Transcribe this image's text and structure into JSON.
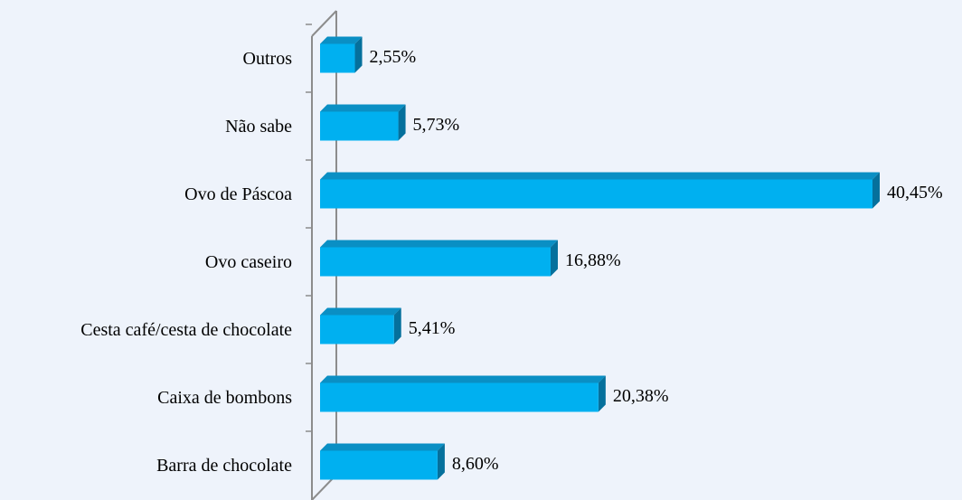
{
  "chart_data": {
    "type": "bar",
    "orientation": "horizontal",
    "categories": [
      "Outros",
      "Não sabe",
      "Ovo de Páscoa",
      "Ovo caseiro",
      "Cesta café/cesta de chocolate",
      "Caixa de bombons",
      "Barra de chocolate"
    ],
    "values": [
      2.55,
      5.73,
      40.45,
      16.88,
      5.41,
      20.38,
      8.6
    ],
    "value_labels": [
      "2,55%",
      "5,73%",
      "40,45%",
      "16,88%",
      "5,41%",
      "20,38%",
      "8,60%"
    ],
    "color": "#00b0f0"
  }
}
